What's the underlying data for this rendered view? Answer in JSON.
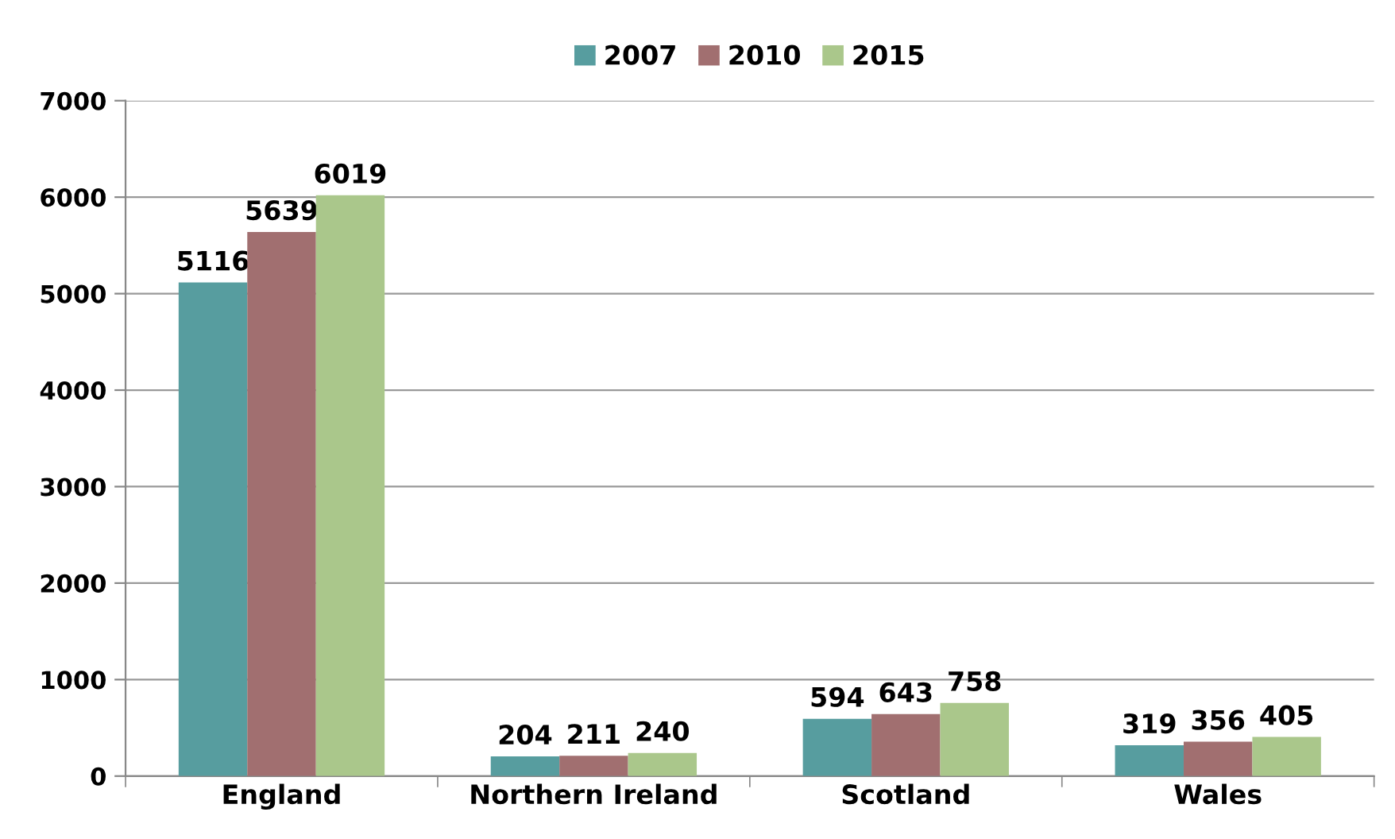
{
  "chart_data": {
    "type": "bar",
    "categories": [
      "England",
      "Northern Ireland",
      "Scotland",
      "Wales"
    ],
    "series": [
      {
        "name": "2007",
        "color": "#579d9f",
        "values": [
          5116,
          204,
          594,
          319
        ]
      },
      {
        "name": "2010",
        "color": "#a16f70",
        "values": [
          5639,
          211,
          643,
          356
        ]
      },
      {
        "name": "2015",
        "color": "#aac78b",
        "values": [
          6019,
          240,
          758,
          405
        ]
      }
    ],
    "ylim": [
      0,
      7000
    ],
    "yticks": [
      0,
      1000,
      2000,
      3000,
      4000,
      5000,
      6000,
      7000
    ],
    "grid": "y",
    "legend": "top",
    "data_labels": true
  }
}
